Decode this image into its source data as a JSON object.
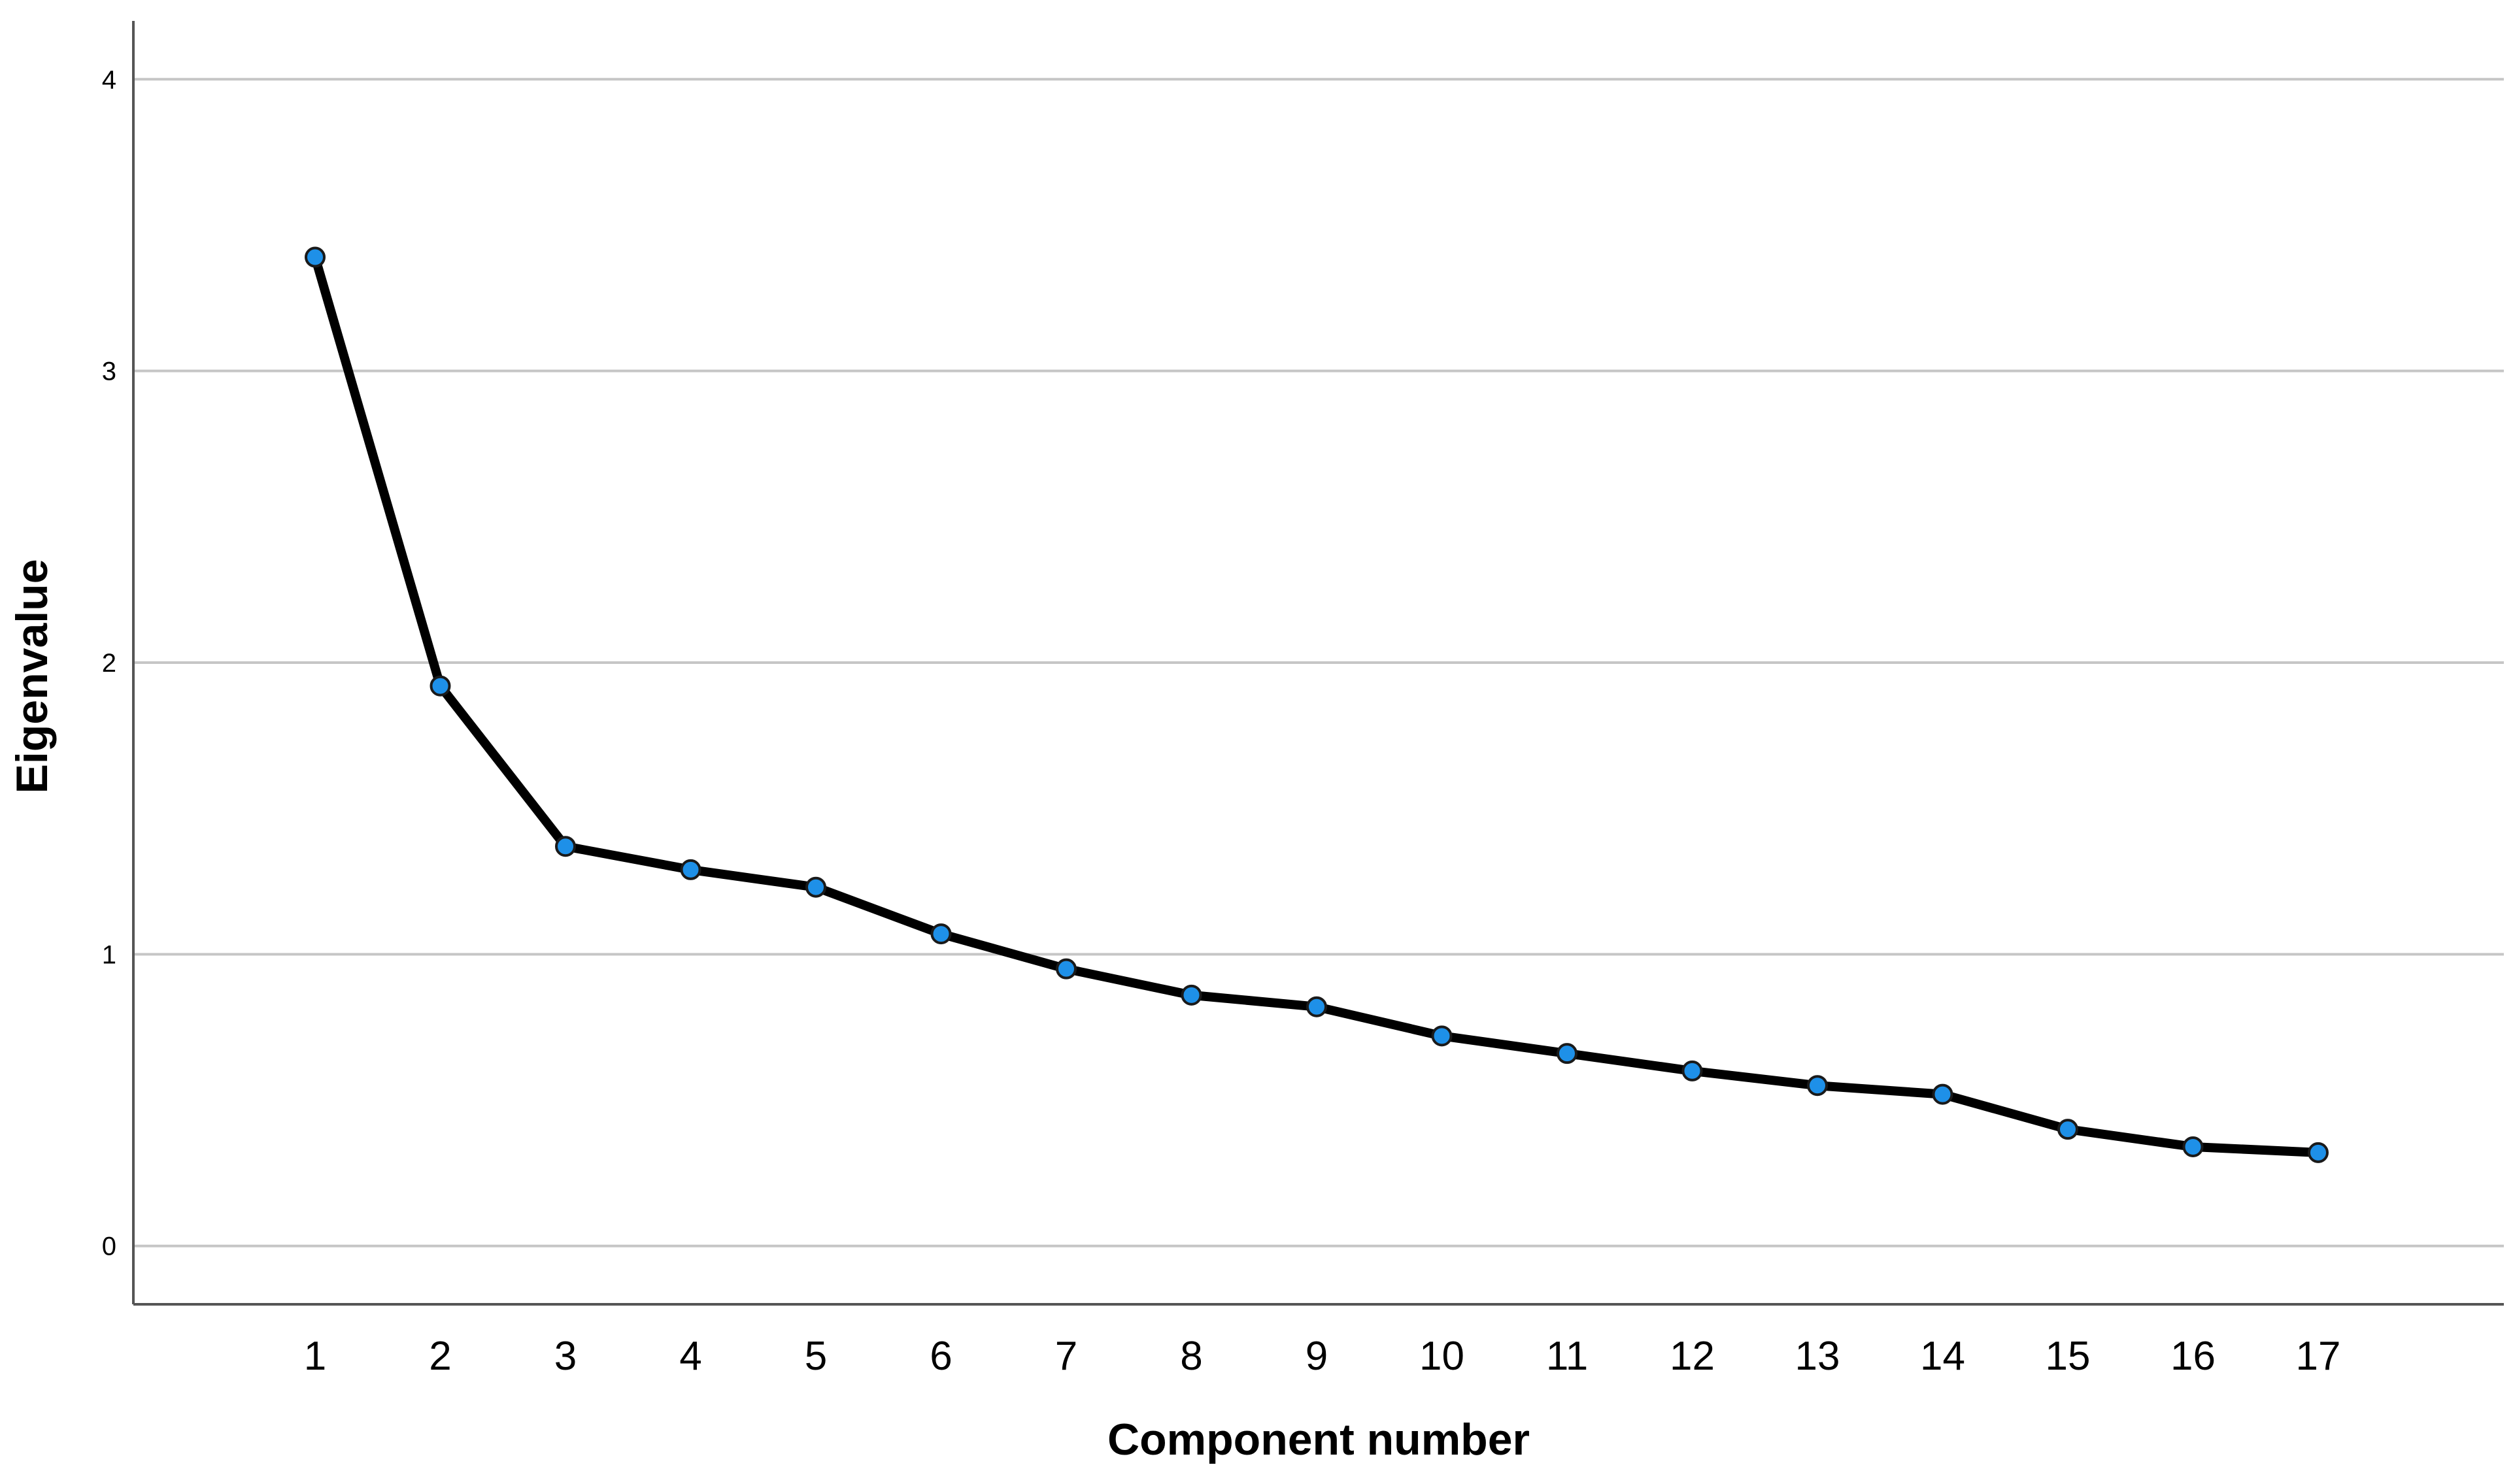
{
  "chart_data": {
    "type": "line",
    "title": "",
    "xlabel": "Component number",
    "ylabel": "Eigenvalue",
    "x": [
      "1",
      "2",
      "3",
      "4",
      "5",
      "6",
      "7",
      "8",
      "9",
      "10",
      "11",
      "12",
      "13",
      "14",
      "15",
      "16",
      "17"
    ],
    "series": [
      {
        "values": [
          3.39,
          1.92,
          1.37,
          1.29,
          1.23,
          1.07,
          0.95,
          0.86,
          0.82,
          0.72,
          0.66,
          0.6,
          0.55,
          0.52,
          0.4,
          0.34,
          0.32
        ]
      }
    ],
    "ylim": [
      -0.2,
      4.2
    ],
    "yticks": [
      "0",
      "1",
      "2",
      "3",
      "4"
    ],
    "grid": "horizontal",
    "legend": "none",
    "colors": {
      "line": "#000000",
      "marker": "#1e90e8",
      "grid": "#c6c6c6"
    }
  }
}
